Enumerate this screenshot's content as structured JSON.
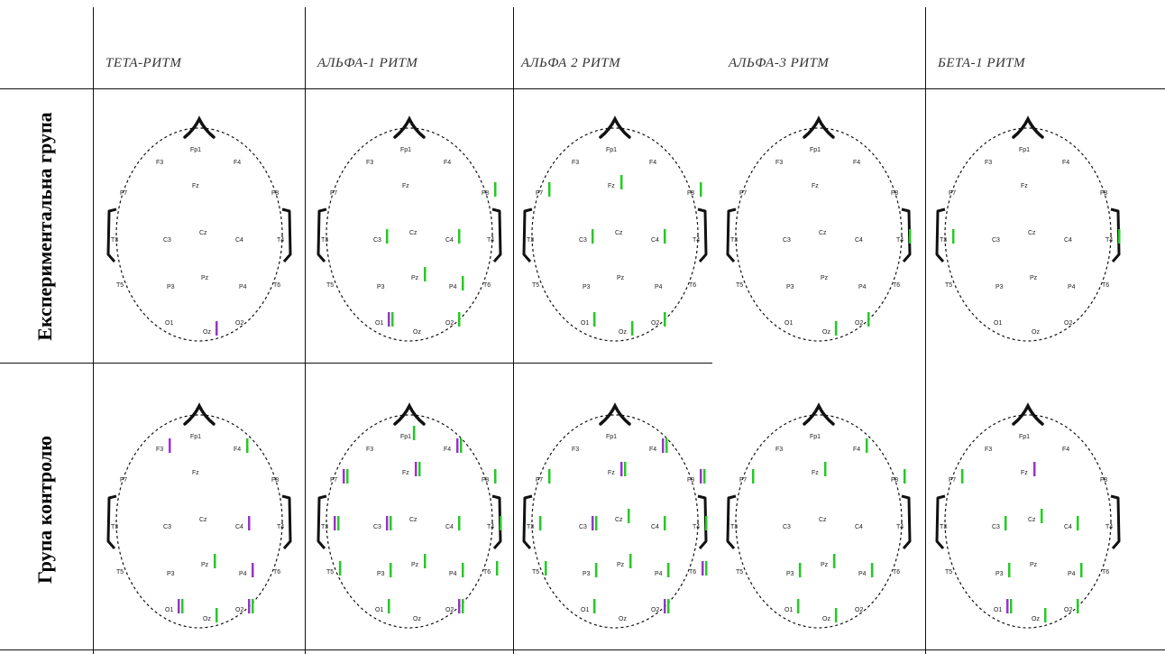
{
  "columns": [
    {
      "label": "ТЕТА-РИТМ"
    },
    {
      "label": "АЛЬФА-1 РИТМ"
    },
    {
      "label": "АЛЬФА 2 РИТМ"
    },
    {
      "label": "АЛЬФА-3 РИТМ"
    },
    {
      "label": "БЕТА-1 РИТМ"
    }
  ],
  "rows": [
    {
      "label": "Експериментальна група"
    },
    {
      "label": "Група контролю"
    }
  ],
  "colors": {
    "green": "#22cc22",
    "purple": "#9933cc",
    "line": "#111111"
  },
  "heads": [
    {
      "row": 0,
      "col": 0,
      "electrodes": [
        {
          "n": "Fp1",
          "b": []
        },
        {
          "n": "F3",
          "b": []
        },
        {
          "n": "F4",
          "b": []
        },
        {
          "n": "F7",
          "b": []
        },
        {
          "n": "Fz",
          "b": []
        },
        {
          "n": "F8",
          "b": []
        },
        {
          "n": "T3",
          "b": []
        },
        {
          "n": "C3",
          "b": []
        },
        {
          "n": "Cz",
          "b": []
        },
        {
          "n": "C4",
          "b": []
        },
        {
          "n": "T4",
          "b": []
        },
        {
          "n": "T5",
          "b": []
        },
        {
          "n": "P3",
          "b": []
        },
        {
          "n": "Pz",
          "b": []
        },
        {
          "n": "P4",
          "b": []
        },
        {
          "n": "T6",
          "b": []
        },
        {
          "n": "O1",
          "b": []
        },
        {
          "n": "Oz",
          "b": [
            "p"
          ]
        },
        {
          "n": "O2",
          "b": []
        }
      ]
    },
    {
      "row": 0,
      "col": 1,
      "electrodes": [
        {
          "n": "Fp1",
          "b": []
        },
        {
          "n": "F3",
          "b": []
        },
        {
          "n": "F4",
          "b": []
        },
        {
          "n": "F7",
          "b": []
        },
        {
          "n": "Fz",
          "b": []
        },
        {
          "n": "F8",
          "b": [
            "g"
          ]
        },
        {
          "n": "T3",
          "b": []
        },
        {
          "n": "C3",
          "b": [
            "g"
          ]
        },
        {
          "n": "Cz",
          "b": []
        },
        {
          "n": "C4",
          "b": [
            "g"
          ]
        },
        {
          "n": "T4",
          "b": []
        },
        {
          "n": "T5",
          "b": []
        },
        {
          "n": "P3",
          "b": []
        },
        {
          "n": "Pz",
          "b": [
            "g"
          ]
        },
        {
          "n": "P4",
          "b": [
            "g"
          ]
        },
        {
          "n": "T6",
          "b": []
        },
        {
          "n": "O1",
          "b": [
            "p",
            "g"
          ]
        },
        {
          "n": "Oz",
          "b": []
        },
        {
          "n": "O2",
          "b": [
            "g"
          ]
        }
      ]
    },
    {
      "row": 0,
      "col": 2,
      "electrodes": [
        {
          "n": "Fp1",
          "b": []
        },
        {
          "n": "F3",
          "b": []
        },
        {
          "n": "F4",
          "b": []
        },
        {
          "n": "F7",
          "b": [
            "g"
          ]
        },
        {
          "n": "Fz",
          "b": [
            "g"
          ]
        },
        {
          "n": "F8",
          "b": [
            "g"
          ]
        },
        {
          "n": "T3",
          "b": []
        },
        {
          "n": "C3",
          "b": [
            "g"
          ]
        },
        {
          "n": "Cz",
          "b": []
        },
        {
          "n": "C4",
          "b": [
            "g"
          ]
        },
        {
          "n": "T4",
          "b": []
        },
        {
          "n": "T5",
          "b": []
        },
        {
          "n": "P3",
          "b": []
        },
        {
          "n": "Pz",
          "b": []
        },
        {
          "n": "P4",
          "b": []
        },
        {
          "n": "T6",
          "b": []
        },
        {
          "n": "O1",
          "b": [
            "g"
          ]
        },
        {
          "n": "Oz",
          "b": [
            "g"
          ]
        },
        {
          "n": "O2",
          "b": [
            "g"
          ]
        }
      ]
    },
    {
      "row": 0,
      "col": 3,
      "electrodes": [
        {
          "n": "Fp1",
          "b": []
        },
        {
          "n": "F3",
          "b": []
        },
        {
          "n": "F4",
          "b": []
        },
        {
          "n": "F7",
          "b": []
        },
        {
          "n": "Fz",
          "b": []
        },
        {
          "n": "F8",
          "b": []
        },
        {
          "n": "T3",
          "b": []
        },
        {
          "n": "C3",
          "b": []
        },
        {
          "n": "Cz",
          "b": []
        },
        {
          "n": "C4",
          "b": []
        },
        {
          "n": "T4",
          "b": [
            "g"
          ]
        },
        {
          "n": "T5",
          "b": []
        },
        {
          "n": "P3",
          "b": []
        },
        {
          "n": "Pz",
          "b": []
        },
        {
          "n": "P4",
          "b": []
        },
        {
          "n": "T6",
          "b": []
        },
        {
          "n": "O1",
          "b": []
        },
        {
          "n": "Oz",
          "b": [
            "g"
          ]
        },
        {
          "n": "O2",
          "b": [
            "g"
          ]
        }
      ]
    },
    {
      "row": 0,
      "col": 4,
      "electrodes": [
        {
          "n": "Fp1",
          "b": []
        },
        {
          "n": "F3",
          "b": []
        },
        {
          "n": "F4",
          "b": []
        },
        {
          "n": "F7",
          "b": []
        },
        {
          "n": "Fz",
          "b": []
        },
        {
          "n": "F8",
          "b": []
        },
        {
          "n": "T3",
          "b": [
            "g"
          ]
        },
        {
          "n": "C3",
          "b": []
        },
        {
          "n": "Cz",
          "b": []
        },
        {
          "n": "C4",
          "b": []
        },
        {
          "n": "T4",
          "b": [
            "g"
          ]
        },
        {
          "n": "T5",
          "b": []
        },
        {
          "n": "P3",
          "b": []
        },
        {
          "n": "Pz",
          "b": []
        },
        {
          "n": "P4",
          "b": []
        },
        {
          "n": "T6",
          "b": []
        },
        {
          "n": "O1",
          "b": []
        },
        {
          "n": "Oz",
          "b": []
        },
        {
          "n": "O2",
          "b": []
        }
      ]
    },
    {
      "row": 1,
      "col": 0,
      "electrodes": [
        {
          "n": "Fp1",
          "b": []
        },
        {
          "n": "F3",
          "b": [
            "p"
          ]
        },
        {
          "n": "F4",
          "b": [
            "g"
          ]
        },
        {
          "n": "F7",
          "b": []
        },
        {
          "n": "Fz",
          "b": []
        },
        {
          "n": "F8",
          "b": []
        },
        {
          "n": "T3",
          "b": []
        },
        {
          "n": "C3",
          "b": []
        },
        {
          "n": "Cz",
          "b": []
        },
        {
          "n": "C4",
          "b": [
            "p"
          ]
        },
        {
          "n": "T4",
          "b": []
        },
        {
          "n": "T5",
          "b": []
        },
        {
          "n": "P3",
          "b": []
        },
        {
          "n": "Pz",
          "b": [
            "g"
          ]
        },
        {
          "n": "P4",
          "b": [
            "p"
          ]
        },
        {
          "n": "T6",
          "b": []
        },
        {
          "n": "O1",
          "b": [
            "p",
            "g"
          ]
        },
        {
          "n": "Oz",
          "b": [
            "g"
          ]
        },
        {
          "n": "O2",
          "b": [
            "p",
            "g"
          ]
        }
      ]
    },
    {
      "row": 1,
      "col": 1,
      "electrodes": [
        {
          "n": "Fp1",
          "b": [
            "g"
          ]
        },
        {
          "n": "F3",
          "b": []
        },
        {
          "n": "F4",
          "b": [
            "p",
            "g"
          ]
        },
        {
          "n": "F7",
          "b": [
            "p",
            "g"
          ]
        },
        {
          "n": "Fz",
          "b": [
            "p",
            "g"
          ]
        },
        {
          "n": "F8",
          "b": [
            "g"
          ]
        },
        {
          "n": "T3",
          "b": [
            "p",
            "g"
          ]
        },
        {
          "n": "C3",
          "b": [
            "p",
            "g"
          ]
        },
        {
          "n": "Cz",
          "b": []
        },
        {
          "n": "C4",
          "b": [
            "g"
          ]
        },
        {
          "n": "T4",
          "b": [
            "g"
          ]
        },
        {
          "n": "T5",
          "b": [
            "g"
          ]
        },
        {
          "n": "P3",
          "b": [
            "g"
          ]
        },
        {
          "n": "Pz",
          "b": [
            "g"
          ]
        },
        {
          "n": "P4",
          "b": [
            "g"
          ]
        },
        {
          "n": "T6",
          "b": [
            "g"
          ]
        },
        {
          "n": "O1",
          "b": [
            "g"
          ]
        },
        {
          "n": "Oz",
          "b": []
        },
        {
          "n": "O2",
          "b": [
            "p",
            "g"
          ]
        }
      ]
    },
    {
      "row": 1,
      "col": 2,
      "electrodes": [
        {
          "n": "Fp1",
          "b": []
        },
        {
          "n": "F3",
          "b": []
        },
        {
          "n": "F4",
          "b": [
            "p",
            "g"
          ]
        },
        {
          "n": "F7",
          "b": [
            "g"
          ]
        },
        {
          "n": "Fz",
          "b": [
            "p",
            "g"
          ]
        },
        {
          "n": "F8",
          "b": [
            "p",
            "g"
          ]
        },
        {
          "n": "T3",
          "b": [
            "g"
          ]
        },
        {
          "n": "C3",
          "b": [
            "p",
            "g"
          ]
        },
        {
          "n": "Cz",
          "b": [
            "g"
          ]
        },
        {
          "n": "C4",
          "b": [
            "g"
          ]
        },
        {
          "n": "T4",
          "b": [
            "g"
          ]
        },
        {
          "n": "T5",
          "b": [
            "g"
          ]
        },
        {
          "n": "P3",
          "b": [
            "g"
          ]
        },
        {
          "n": "Pz",
          "b": [
            "g"
          ]
        },
        {
          "n": "P4",
          "b": [
            "g"
          ]
        },
        {
          "n": "T6",
          "b": [
            "p",
            "g"
          ]
        },
        {
          "n": "O1",
          "b": [
            "g"
          ]
        },
        {
          "n": "Oz",
          "b": []
        },
        {
          "n": "O2",
          "b": [
            "p",
            "g"
          ]
        }
      ]
    },
    {
      "row": 1,
      "col": 3,
      "electrodes": [
        {
          "n": "Fp1",
          "b": []
        },
        {
          "n": "F3",
          "b": []
        },
        {
          "n": "F4",
          "b": [
            "g"
          ]
        },
        {
          "n": "F7",
          "b": [
            "g"
          ]
        },
        {
          "n": "Fz",
          "b": [
            "g"
          ]
        },
        {
          "n": "F8",
          "b": [
            "g"
          ]
        },
        {
          "n": "T3",
          "b": []
        },
        {
          "n": "C3",
          "b": []
        },
        {
          "n": "Cz",
          "b": []
        },
        {
          "n": "C4",
          "b": []
        },
        {
          "n": "T4",
          "b": []
        },
        {
          "n": "T5",
          "b": []
        },
        {
          "n": "P3",
          "b": [
            "g"
          ]
        },
        {
          "n": "Pz",
          "b": [
            "g"
          ]
        },
        {
          "n": "P4",
          "b": [
            "g"
          ]
        },
        {
          "n": "T6",
          "b": []
        },
        {
          "n": "O1",
          "b": [
            "g"
          ]
        },
        {
          "n": "Oz",
          "b": [
            "g"
          ]
        },
        {
          "n": "O2",
          "b": []
        }
      ]
    },
    {
      "row": 1,
      "col": 4,
      "electrodes": [
        {
          "n": "Fp1",
          "b": []
        },
        {
          "n": "F3",
          "b": []
        },
        {
          "n": "F4",
          "b": []
        },
        {
          "n": "F7",
          "b": [
            "g"
          ]
        },
        {
          "n": "Fz",
          "b": [
            "p"
          ]
        },
        {
          "n": "F8",
          "b": []
        },
        {
          "n": "T3",
          "b": []
        },
        {
          "n": "C3",
          "b": [
            "g"
          ]
        },
        {
          "n": "Cz",
          "b": [
            "g"
          ]
        },
        {
          "n": "C4",
          "b": [
            "g"
          ]
        },
        {
          "n": "T4",
          "b": []
        },
        {
          "n": "T5",
          "b": []
        },
        {
          "n": "P3",
          "b": [
            "g"
          ]
        },
        {
          "n": "Pz",
          "b": []
        },
        {
          "n": "P4",
          "b": [
            "g"
          ]
        },
        {
          "n": "T6",
          "b": []
        },
        {
          "n": "O1",
          "b": [
            "p",
            "g"
          ]
        },
        {
          "n": "Oz",
          "b": [
            "g"
          ]
        },
        {
          "n": "O2",
          "b": [
            "g"
          ]
        }
      ]
    }
  ]
}
